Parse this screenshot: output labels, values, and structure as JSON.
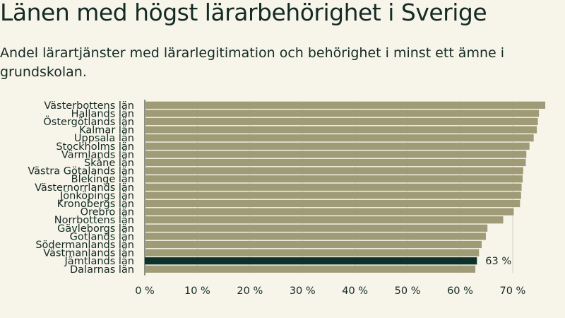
{
  "header": {
    "title": "Länen med högst lärarbehörighet i Sverige",
    "subtitle": "Andel lärartjänster med lärarlegitimation och behörighet i minst ett ämne i grundskolan."
  },
  "colors": {
    "background": "#f7f4ea",
    "bar": "#a09b77",
    "highlight": "#0b312a",
    "text": "#142b23",
    "grid": "#d8d3c4"
  },
  "chart_data": {
    "type": "bar",
    "orientation": "horizontal",
    "title": "Länen med högst lärarbehörighet i Sverige",
    "subtitle": "Andel lärartjänster med lärarlegitimation och behörighet i minst ett ämne i grundskolan.",
    "categories": [
      "Västerbottens län",
      "Hallands län",
      "Östergötlands län",
      "Kalmar län",
      "Uppsala län",
      "Stockholms län",
      "Värmlands län",
      "Skåne län",
      "Västra Götalands län",
      "Blekinge län",
      "Västernorrlands län",
      "Jönköpings län",
      "Kronobergs län",
      "Örebro län",
      "Norrbottens län",
      "Gävleborgs län",
      "Gotlands län",
      "Södermanlands län",
      "Västmanlands län",
      "Jämtlands län",
      "Dalarnas län"
    ],
    "values": [
      76.2,
      75.0,
      74.8,
      74.6,
      74.0,
      73.2,
      72.6,
      72.5,
      72.0,
      71.9,
      71.7,
      71.6,
      71.4,
      70.2,
      68.2,
      65.2,
      64.9,
      64.1,
      63.6,
      63.2,
      62.9
    ],
    "highlight_index": 19,
    "highlight_label": "63 %",
    "xlim": [
      0,
      77
    ],
    "xticks": [
      0,
      10,
      20,
      30,
      40,
      50,
      60,
      70
    ],
    "xtick_labels": [
      "0 %",
      "10 %",
      "20 %",
      "30 %",
      "40 %",
      "50 %",
      "60 %",
      "70 %"
    ],
    "xlabel": "",
    "ylabel": "",
    "grid": true,
    "legend": "none"
  }
}
